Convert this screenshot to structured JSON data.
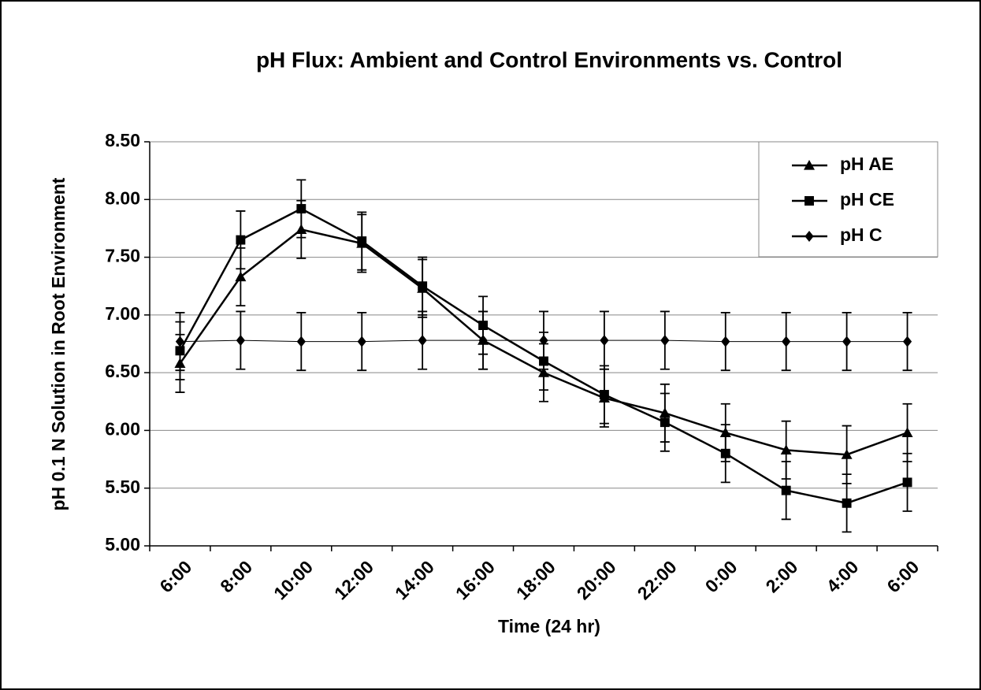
{
  "chart_data": {
    "type": "line",
    "title": "pH Flux: Ambient and Control Environments vs. Control",
    "x_label": "Time (24 hr)",
    "y_label": "pH 0.1 N Solution in Root Environment",
    "categories": [
      "6:00",
      "8:00",
      "10:00",
      "12:00",
      "14:00",
      "16:00",
      "18:00",
      "20:00",
      "22:00",
      "0:00",
      "2:00",
      "4:00",
      "6:00"
    ],
    "series": [
      {
        "name": "pH AE",
        "color": "#000000",
        "marker": "triangle",
        "values": [
          6.58,
          7.33,
          7.74,
          7.62,
          7.23,
          6.78,
          6.5,
          6.28,
          6.15,
          5.98,
          5.83,
          5.79,
          5.98
        ],
        "errors": [
          0.25,
          0.25,
          0.25,
          0.25,
          0.25,
          0.25,
          0.25,
          0.25,
          0.25,
          0.25,
          0.25,
          0.25,
          0.25
        ]
      },
      {
        "name": "pH CE",
        "color": "#000000",
        "marker": "square",
        "values": [
          6.69,
          7.65,
          7.92,
          7.64,
          7.25,
          6.91,
          6.6,
          6.31,
          6.07,
          5.8,
          5.48,
          5.37,
          5.55
        ],
        "errors": [
          0.25,
          0.25,
          0.25,
          0.25,
          0.25,
          0.25,
          0.25,
          0.25,
          0.25,
          0.25,
          0.25,
          0.25,
          0.25
        ]
      },
      {
        "name": "pH C",
        "color": "#000000",
        "marker": "diamond",
        "values": [
          6.77,
          6.78,
          6.77,
          6.77,
          6.78,
          6.78,
          6.78,
          6.78,
          6.78,
          6.77,
          6.77,
          6.77,
          6.77
        ],
        "errors": [
          0.25,
          0.25,
          0.25,
          0.25,
          0.25,
          0.25,
          0.25,
          0.25,
          0.25,
          0.25,
          0.25,
          0.25,
          0.25
        ]
      }
    ],
    "ylim": [
      5,
      8.5
    ],
    "yticks": [
      {
        "value": 5,
        "label": "5.00"
      },
      {
        "value": 5.5,
        "label": "5.50"
      },
      {
        "value": 6,
        "label": "6.00"
      },
      {
        "value": 6.5,
        "label": "6.50"
      },
      {
        "value": 7,
        "label": "7.00"
      },
      {
        "value": 7.5,
        "label": "7.50"
      },
      {
        "value": 8,
        "label": "8.00"
      },
      {
        "value": 8.5,
        "label": "8.50"
      }
    ],
    "grid": true,
    "legend": "top-right"
  }
}
